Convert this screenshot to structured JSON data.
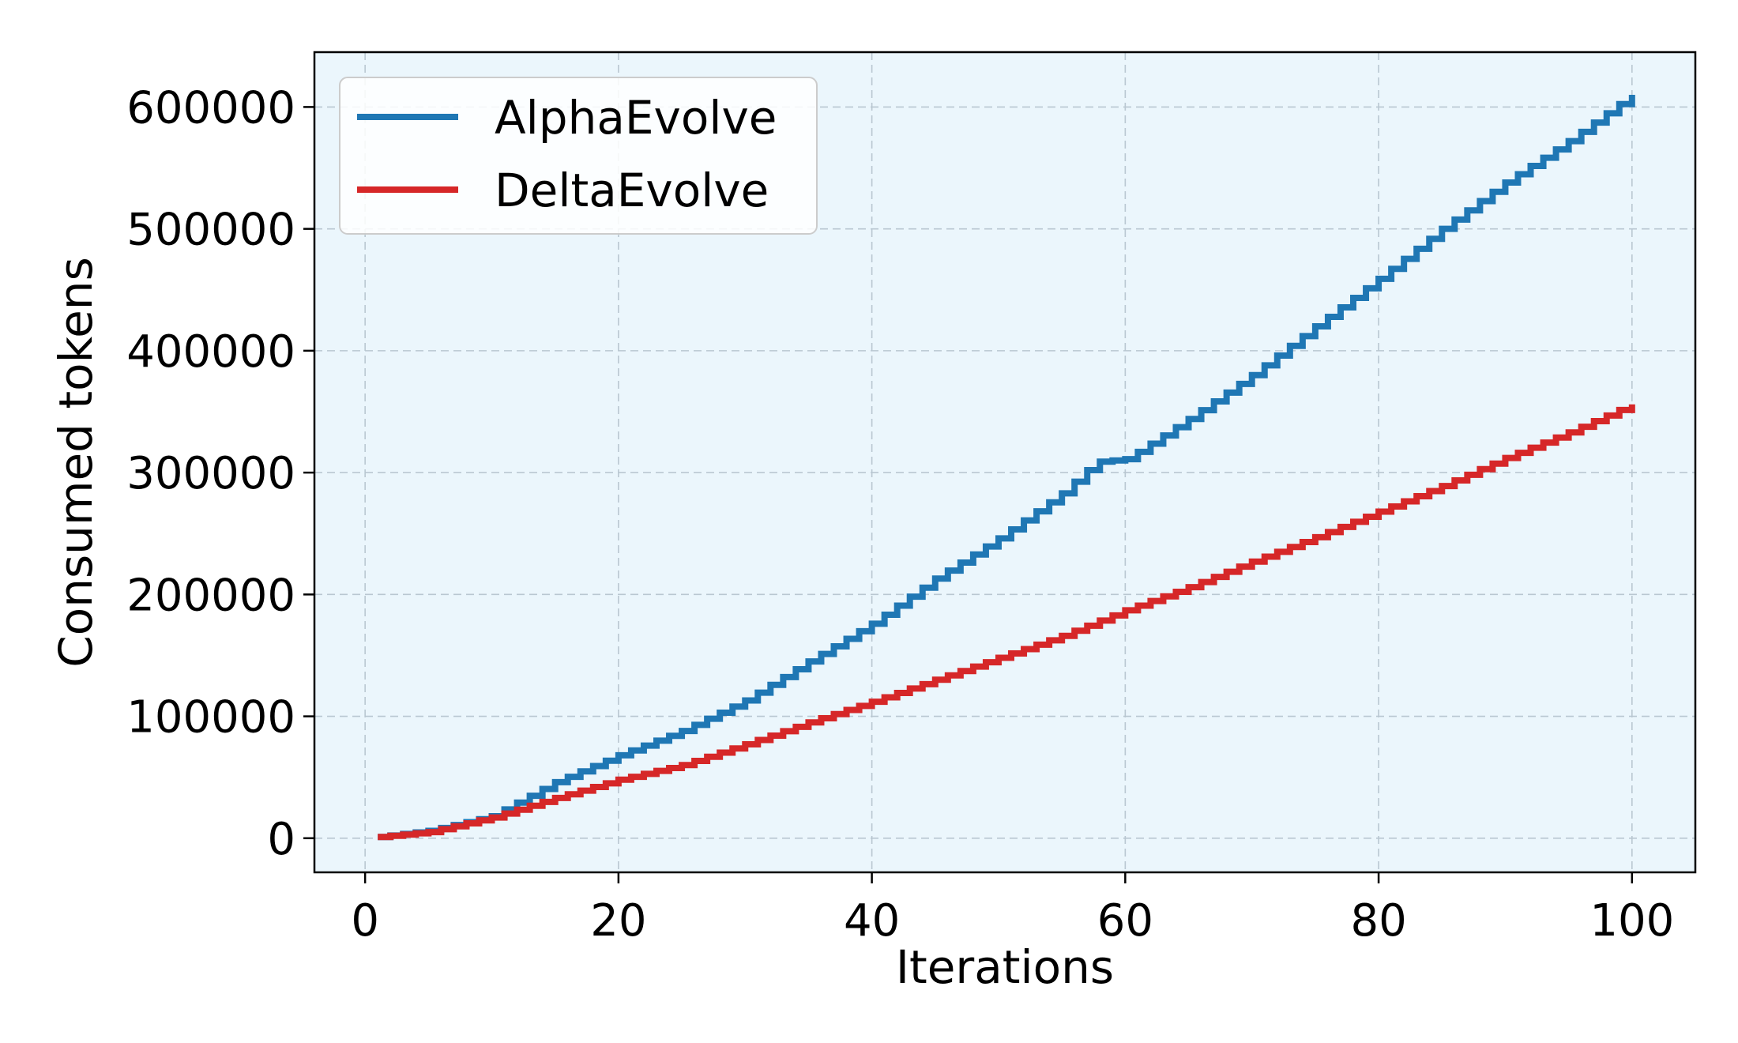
{
  "chart_data": {
    "type": "line",
    "drawstyle": "steps",
    "title": "",
    "xlabel": "Iterations",
    "ylabel": "Consumed tokens",
    "xlim": [
      -4,
      105
    ],
    "ylim": [
      -28000,
      645000
    ],
    "x_ticks": [
      0,
      20,
      40,
      60,
      80,
      100
    ],
    "x_tick_labels": [
      "0",
      "20",
      "40",
      "60",
      "80",
      "100"
    ],
    "y_ticks": [
      0,
      100000,
      200000,
      300000,
      400000,
      500000,
      600000
    ],
    "y_tick_labels": [
      "0",
      "100000",
      "200000",
      "300000",
      "400000",
      "500000",
      "600000"
    ],
    "grid": true,
    "legend_position": "upper-left",
    "x_range": [
      1,
      100
    ],
    "series": [
      {
        "name": "AlphaEvolve",
        "color": "#1f77b4",
        "anchors": [
          [
            1,
            1000
          ],
          [
            5,
            6000
          ],
          [
            10,
            18000
          ],
          [
            15,
            46000
          ],
          [
            20,
            68000
          ],
          [
            25,
            88000
          ],
          [
            30,
            113000
          ],
          [
            35,
            145000
          ],
          [
            40,
            176000
          ],
          [
            45,
            213000
          ],
          [
            50,
            246000
          ],
          [
            55,
            283000
          ],
          [
            57,
            302000
          ],
          [
            58,
            309000
          ],
          [
            60,
            311000
          ],
          [
            61,
            317000
          ],
          [
            65,
            344000
          ],
          [
            70,
            380000
          ],
          [
            75,
            420000
          ],
          [
            80,
            459000
          ],
          [
            85,
            500000
          ],
          [
            90,
            538000
          ],
          [
            95,
            572000
          ],
          [
            100,
            610000
          ]
        ]
      },
      {
        "name": "DeltaEvolve",
        "color": "#d62728",
        "anchors": [
          [
            1,
            1000
          ],
          [
            5,
            5000
          ],
          [
            10,
            17000
          ],
          [
            15,
            33000
          ],
          [
            20,
            48000
          ],
          [
            25,
            60000
          ],
          [
            30,
            77000
          ],
          [
            35,
            95000
          ],
          [
            40,
            112000
          ],
          [
            45,
            130000
          ],
          [
            50,
            148000
          ],
          [
            55,
            166000
          ],
          [
            60,
            187000
          ],
          [
            65,
            206000
          ],
          [
            70,
            227000
          ],
          [
            75,
            247000
          ],
          [
            80,
            268000
          ],
          [
            85,
            289000
          ],
          [
            90,
            312000
          ],
          [
            95,
            333000
          ],
          [
            100,
            356000
          ]
        ]
      }
    ]
  }
}
